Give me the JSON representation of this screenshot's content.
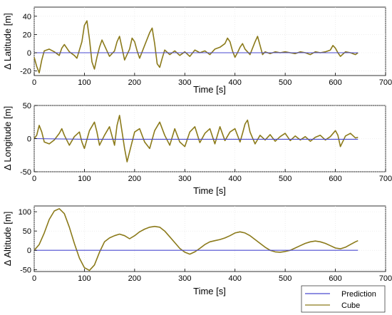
{
  "chart_data": [
    {
      "type": "line",
      "xlabel": "Time [s]",
      "ylabel": "Δ Latitude [m]",
      "xlim": [
        0,
        700
      ],
      "ylim": [
        -25,
        50
      ],
      "xticks": [
        0,
        100,
        200,
        300,
        400,
        500,
        600,
        700
      ],
      "yticks": [
        -20,
        0,
        20,
        40
      ],
      "grid": true,
      "series": [
        {
          "name": "Prediction",
          "color": "#4a4ad0",
          "x": [
            0,
            100,
            200,
            300,
            400,
            500,
            600,
            645
          ],
          "y": [
            0,
            0,
            0,
            0,
            0,
            0,
            0,
            0
          ]
        },
        {
          "name": "Cube",
          "color": "#8b7a1a",
          "x": [
            0,
            5,
            10,
            15,
            20,
            30,
            40,
            50,
            55,
            60,
            70,
            80,
            85,
            90,
            95,
            100,
            105,
            110,
            115,
            120,
            125,
            130,
            135,
            140,
            150,
            160,
            165,
            170,
            175,
            180,
            190,
            195,
            200,
            205,
            210,
            220,
            230,
            235,
            240,
            245,
            250,
            255,
            260,
            270,
            280,
            290,
            300,
            310,
            320,
            330,
            340,
            350,
            360,
            370,
            380,
            385,
            390,
            395,
            400,
            405,
            410,
            415,
            420,
            430,
            440,
            445,
            450,
            455,
            460,
            470,
            480,
            490,
            500,
            510,
            520,
            530,
            540,
            550,
            560,
            570,
            580,
            590,
            595,
            600,
            605,
            610,
            620,
            630,
            640,
            645
          ],
          "y": [
            -5,
            -15,
            -22,
            -8,
            2,
            4,
            1,
            -3,
            5,
            9,
            1,
            -3,
            -6,
            3,
            12,
            30,
            35,
            15,
            -10,
            -18,
            -5,
            6,
            14,
            8,
            -4,
            2,
            12,
            18,
            5,
            -8,
            4,
            16,
            12,
            2,
            -6,
            8,
            22,
            27,
            10,
            -12,
            -16,
            -6,
            3,
            -2,
            2,
            -3,
            1,
            -4,
            3,
            0,
            2,
            -2,
            4,
            6,
            10,
            16,
            12,
            2,
            -5,
            0,
            6,
            10,
            4,
            -2,
            12,
            18,
            8,
            -2,
            1,
            -1,
            1,
            0,
            1,
            0,
            -1,
            1,
            0,
            -2,
            1,
            0,
            1,
            3,
            8,
            5,
            0,
            -4,
            1,
            0,
            -2,
            0
          ]
        }
      ]
    },
    {
      "type": "line",
      "xlabel": "Time [s]",
      "ylabel": "Δ Longitude [m]",
      "xlim": [
        0,
        700
      ],
      "ylim": [
        -50,
        50
      ],
      "xticks": [
        0,
        100,
        200,
        300,
        400,
        500,
        600,
        700
      ],
      "yticks": [
        -50,
        0,
        50
      ],
      "grid": true,
      "series": [
        {
          "name": "Prediction",
          "color": "#4a4ad0",
          "x": [
            0,
            100,
            200,
            300,
            400,
            500,
            600,
            645
          ],
          "y": [
            0,
            -1,
            -1,
            -1,
            -1,
            -1,
            -1,
            -1
          ]
        },
        {
          "name": "Cube",
          "color": "#8b7a1a",
          "x": [
            0,
            5,
            10,
            15,
            20,
            30,
            40,
            50,
            55,
            60,
            70,
            80,
            90,
            95,
            100,
            110,
            120,
            125,
            130,
            140,
            150,
            160,
            165,
            170,
            175,
            180,
            185,
            190,
            200,
            210,
            220,
            230,
            240,
            250,
            260,
            270,
            280,
            290,
            300,
            310,
            320,
            330,
            340,
            350,
            360,
            370,
            380,
            390,
            400,
            410,
            415,
            420,
            425,
            430,
            440,
            450,
            460,
            470,
            480,
            490,
            500,
            510,
            520,
            530,
            540,
            550,
            560,
            570,
            580,
            590,
            600,
            605,
            610,
            620,
            630,
            640,
            645
          ],
          "y": [
            0,
            5,
            20,
            10,
            -5,
            -8,
            -2,
            8,
            15,
            5,
            -10,
            3,
            10,
            -5,
            -15,
            12,
            25,
            10,
            -10,
            5,
            18,
            -10,
            20,
            35,
            10,
            -15,
            -35,
            -20,
            10,
            15,
            -5,
            -15,
            12,
            25,
            5,
            -10,
            15,
            -5,
            -12,
            10,
            18,
            -6,
            8,
            15,
            -8,
            18,
            -3,
            10,
            15,
            -5,
            8,
            22,
            28,
            10,
            -8,
            5,
            -2,
            6,
            -4,
            3,
            8,
            -3,
            4,
            -2,
            3,
            -4,
            2,
            5,
            -2,
            3,
            12,
            5,
            -12,
            4,
            8,
            1,
            2
          ]
        }
      ]
    },
    {
      "type": "line",
      "xlabel": "Time [s]",
      "ylabel": "Δ Altitude [m]",
      "xlim": [
        0,
        700
      ],
      "ylim": [
        -55,
        115
      ],
      "xticks": [
        0,
        100,
        200,
        300,
        400,
        500,
        600,
        700
      ],
      "yticks": [
        -50,
        0,
        50,
        100
      ],
      "grid": true,
      "legend": "bottom-right",
      "series": [
        {
          "name": "Prediction",
          "color": "#4a4ad0",
          "x": [
            0,
            100,
            200,
            300,
            400,
            500,
            600,
            645
          ],
          "y": [
            0,
            0,
            0,
            0,
            0,
            0,
            0,
            0
          ]
        },
        {
          "name": "Cube",
          "color": "#8b7a1a",
          "x": [
            0,
            10,
            20,
            30,
            40,
            50,
            60,
            70,
            80,
            90,
            100,
            110,
            120,
            130,
            140,
            150,
            160,
            170,
            180,
            190,
            200,
            210,
            220,
            230,
            240,
            250,
            260,
            270,
            280,
            290,
            300,
            310,
            320,
            330,
            340,
            350,
            360,
            370,
            380,
            390,
            400,
            410,
            420,
            430,
            440,
            450,
            460,
            470,
            480,
            490,
            500,
            510,
            520,
            530,
            540,
            550,
            560,
            570,
            580,
            590,
            600,
            610,
            620,
            630,
            640,
            645
          ],
          "y": [
            0,
            15,
            45,
            80,
            102,
            108,
            95,
            60,
            18,
            -20,
            -45,
            -52,
            -38,
            -5,
            22,
            32,
            38,
            42,
            38,
            30,
            38,
            48,
            55,
            60,
            62,
            60,
            50,
            35,
            20,
            5,
            -5,
            -10,
            -4,
            5,
            15,
            22,
            25,
            28,
            32,
            38,
            45,
            48,
            45,
            38,
            28,
            18,
            8,
            0,
            -4,
            -5,
            -3,
            0,
            6,
            12,
            18,
            22,
            24,
            22,
            18,
            12,
            6,
            4,
            8,
            15,
            22,
            25
          ]
        }
      ]
    }
  ]
}
